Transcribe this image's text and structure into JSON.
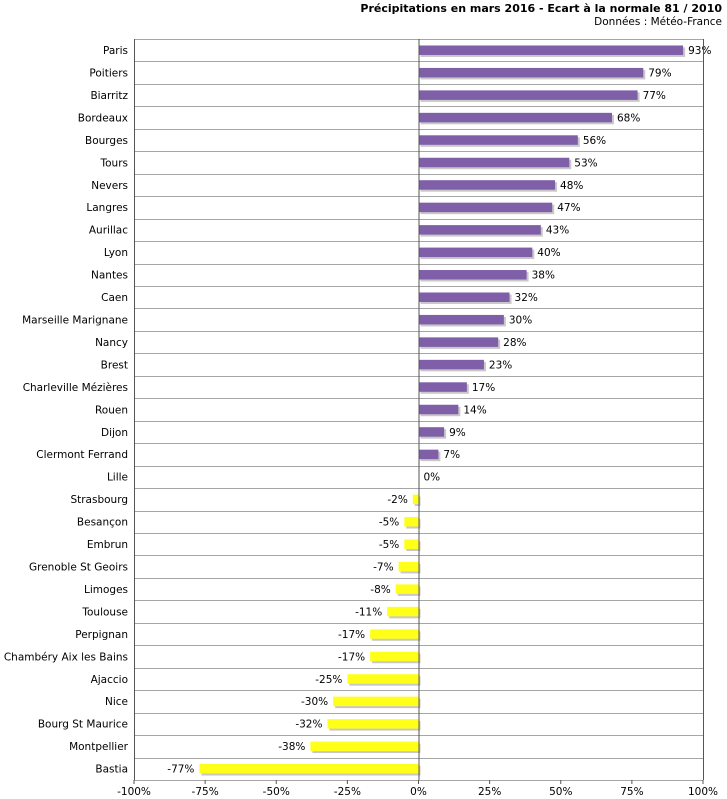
{
  "chart_data": {
    "type": "bar",
    "orientation": "horizontal",
    "title": "Précipitations en mars 2016 - Ecart à la normale 81 / 2010",
    "subtitle": "Données : Météo-France",
    "categories": [
      "Paris",
      "Poitiers",
      "Biarritz",
      "Bordeaux",
      "Bourges",
      "Tours",
      "Nevers",
      "Langres",
      "Aurillac",
      "Lyon",
      "Nantes",
      "Caen",
      "Marseille Marignane",
      "Nancy",
      "Brest",
      "Charleville Mézières",
      "Rouen",
      "Dijon",
      "Clermont Ferrand",
      "Lille",
      "Strasbourg",
      "Besançon",
      "Embrun",
      "Grenoble St Geoirs",
      "Limoges",
      "Toulouse",
      "Perpignan",
      "Chambéry Aix les Bains",
      "Ajaccio",
      "Nice",
      "Bourg St Maurice",
      "Montpellier",
      "Bastia"
    ],
    "values": [
      93,
      79,
      77,
      68,
      56,
      53,
      48,
      47,
      43,
      40,
      38,
      32,
      30,
      28,
      23,
      17,
      14,
      9,
      7,
      0,
      -2,
      -5,
      -5,
      -7,
      -8,
      -11,
      -17,
      -17,
      -25,
      -30,
      -32,
      -38,
      -77
    ],
    "value_labels": [
      "93%",
      "79%",
      "77%",
      "68%",
      "56%",
      "53%",
      "48%",
      "47%",
      "43%",
      "40%",
      "38%",
      "32%",
      "30%",
      "28%",
      "23%",
      "17%",
      "14%",
      "9%",
      "7%",
      "0%",
      "-2%",
      "-5%",
      "-5%",
      "-7%",
      "-8%",
      "-11%",
      "-17%",
      "-17%",
      "-25%",
      "-30%",
      "-32%",
      "-38%",
      "-77%"
    ],
    "xlim": [
      -100,
      100
    ],
    "x_ticks": [
      -100,
      -75,
      -50,
      -25,
      0,
      25,
      50,
      75,
      100
    ],
    "x_tick_labels": [
      "-100%",
      "-75%",
      "-50%",
      "-25%",
      "0%",
      "25%",
      "50%",
      "75%",
      "100%"
    ],
    "grid": "horizontal",
    "colors": {
      "positive": "#7f5fa8",
      "negative": "#ffff1a",
      "grid": "#888888",
      "axis": "#555555"
    }
  }
}
